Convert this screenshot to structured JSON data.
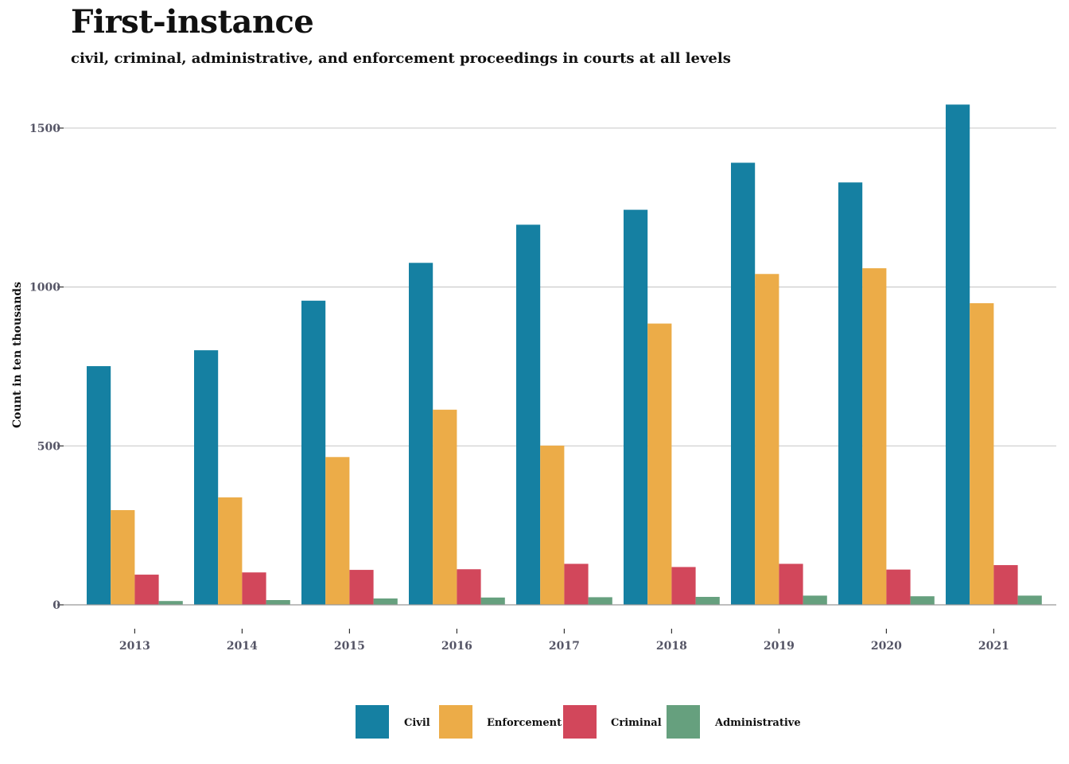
{
  "chart_data": {
    "type": "bar",
    "title": "First-instance",
    "subtitle": "civil, criminal, administrative, and enforcement proceedings in courts at all levels",
    "ylabel": "Count in ten thousands",
    "xlabel": "",
    "categories": [
      "2013",
      "2014",
      "2015",
      "2016",
      "2017",
      "2018",
      "2019",
      "2020",
      "2021"
    ],
    "series": [
      {
        "name": "Civil",
        "color": "#1580a2",
        "values": [
          751,
          801,
          957,
          1076,
          1196,
          1243,
          1391,
          1329,
          1574
        ]
      },
      {
        "name": "Enforcement",
        "color": "#ecac48",
        "values": [
          298,
          338,
          465,
          614,
          501,
          885,
          1041,
          1059,
          949
        ]
      },
      {
        "name": "Criminal",
        "color": "#d2475b",
        "values": [
          95,
          102,
          110,
          112,
          129,
          119,
          129,
          111,
          125
        ]
      },
      {
        "name": "Administrative",
        "color": "#66a07e",
        "values": [
          12,
          15,
          20,
          23,
          24,
          25,
          29,
          27,
          29
        ]
      }
    ],
    "ylim": [
      0,
      1575
    ],
    "yticks": [
      0,
      500,
      1000,
      1500
    ],
    "grid": true,
    "legend": "bottom-center"
  }
}
